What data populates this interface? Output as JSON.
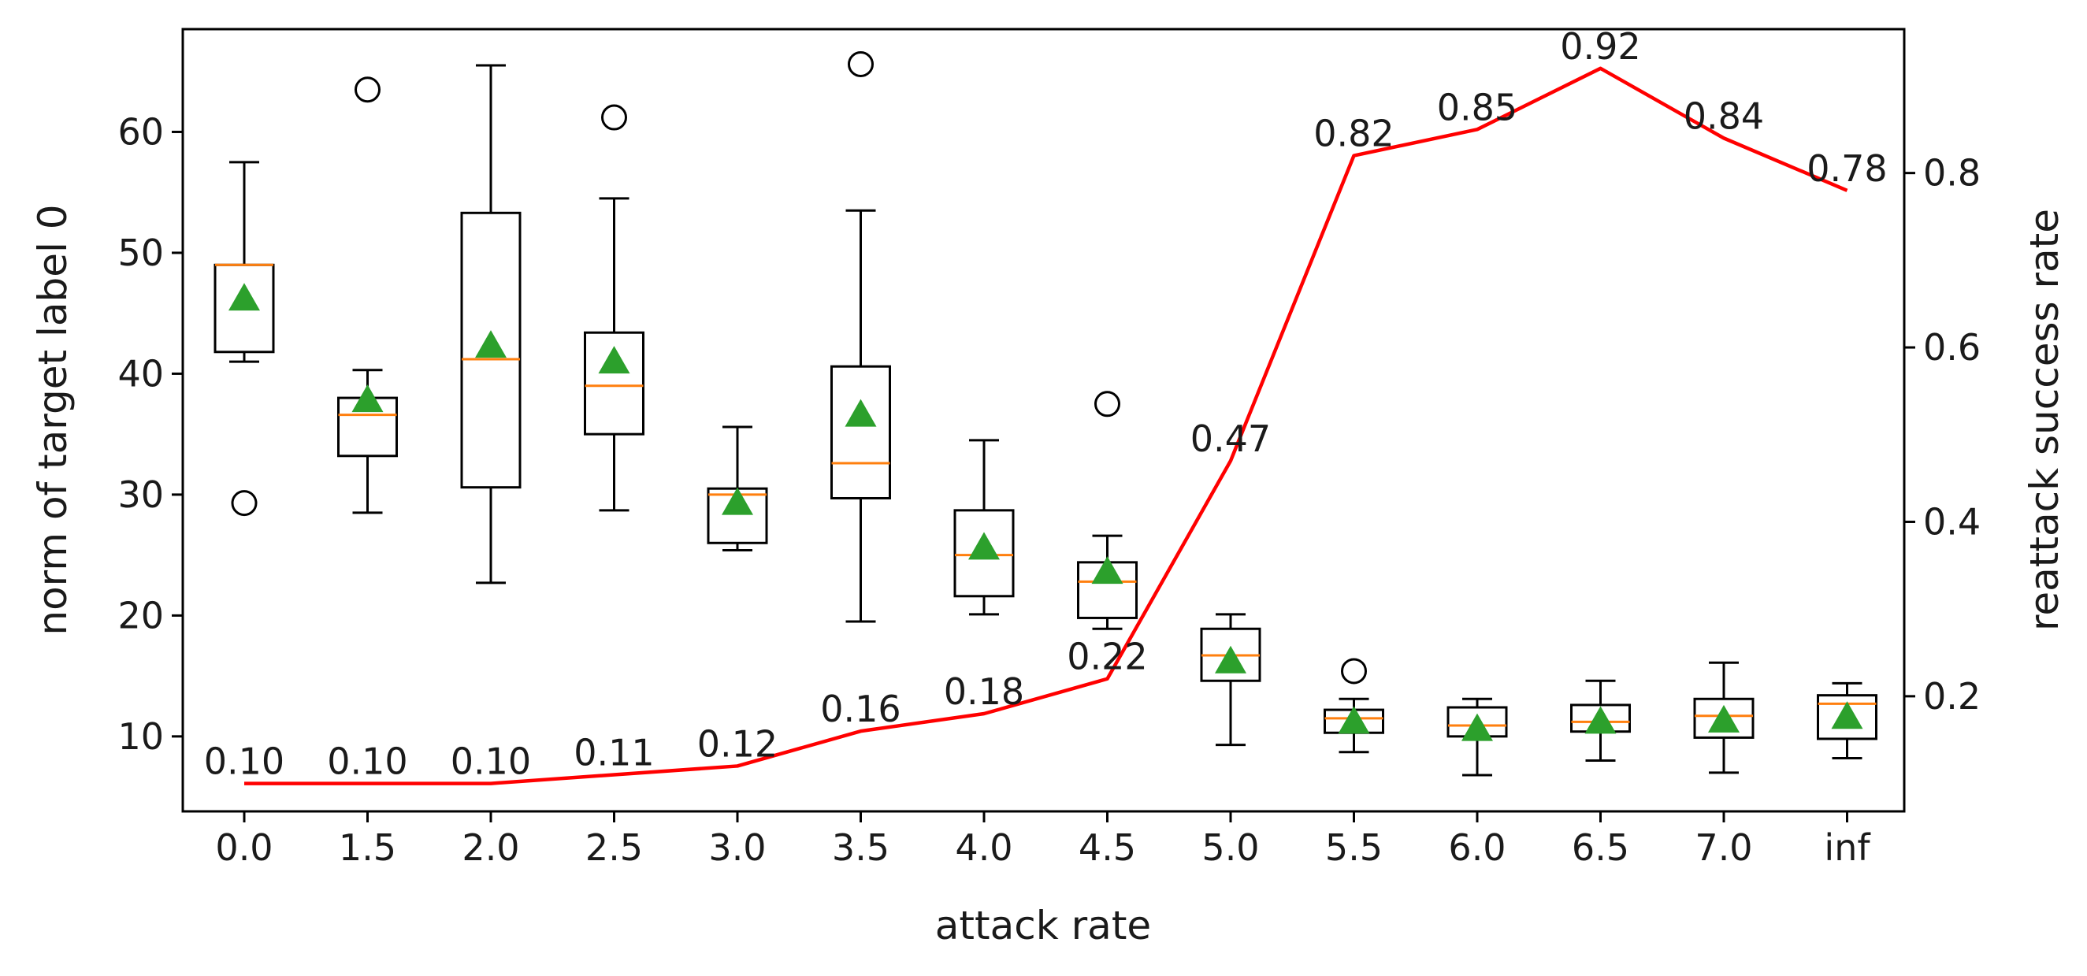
{
  "chart_data": {
    "type": "box",
    "xlabel": "attack rate",
    "ylabel_left": "norm of target label 0",
    "ylabel_right": "reattack success rate",
    "categories": [
      "0.0",
      "1.5",
      "2.0",
      "2.5",
      "3.0",
      "3.5",
      "4.0",
      "4.5",
      "5.0",
      "5.5",
      "6.0",
      "6.5",
      "7.0",
      "inf"
    ],
    "ylim_left": [
      3.8,
      68.5
    ],
    "ylim_right": [
      0.068,
      0.965
    ],
    "yticks_left": [
      10,
      20,
      30,
      40,
      50,
      60
    ],
    "yticks_right": [
      0.2,
      0.4,
      0.6,
      0.8
    ],
    "ytick_labels_right": [
      "0.2",
      "0.4",
      "0.6",
      "0.8"
    ],
    "boxes": [
      {
        "whislo": 41.0,
        "q1": 41.8,
        "med": 49.0,
        "q3": 49.0,
        "whishi": 57.5,
        "mean": 46.2,
        "fliers": [
          29.3
        ]
      },
      {
        "whislo": 28.5,
        "q1": 33.2,
        "med": 36.6,
        "q3": 38.0,
        "whishi": 40.3,
        "mean": 37.8,
        "fliers": [
          63.5
        ]
      },
      {
        "whislo": 22.7,
        "q1": 30.6,
        "med": 41.2,
        "q3": 53.3,
        "whishi": 65.5,
        "mean": 42.3,
        "fliers": []
      },
      {
        "whislo": 28.7,
        "q1": 35.0,
        "med": 39.0,
        "q3": 43.4,
        "whishi": 54.5,
        "mean": 41.0,
        "fliers": [
          61.2
        ]
      },
      {
        "whislo": 25.4,
        "q1": 26.0,
        "med": 30.0,
        "q3": 30.5,
        "whishi": 35.6,
        "mean": 29.3,
        "fliers": []
      },
      {
        "whislo": 19.5,
        "q1": 29.7,
        "med": 32.6,
        "q3": 40.6,
        "whishi": 53.5,
        "mean": 36.6,
        "fliers": [
          65.6
        ]
      },
      {
        "whislo": 20.1,
        "q1": 21.6,
        "med": 25.0,
        "q3": 28.7,
        "whishi": 34.5,
        "mean": 25.6,
        "fliers": []
      },
      {
        "whislo": 18.9,
        "q1": 19.8,
        "med": 22.8,
        "q3": 24.4,
        "whishi": 26.6,
        "mean": 23.6,
        "fliers": [
          37.5
        ]
      },
      {
        "whislo": 9.3,
        "q1": 14.6,
        "med": 16.7,
        "q3": 18.9,
        "whishi": 20.1,
        "mean": 16.2,
        "fliers": []
      },
      {
        "whislo": 8.7,
        "q1": 10.3,
        "med": 11.5,
        "q3": 12.2,
        "whishi": 13.1,
        "mean": 11.2,
        "fliers": [
          15.4
        ]
      },
      {
        "whislo": 6.8,
        "q1": 10.0,
        "med": 10.9,
        "q3": 12.4,
        "whishi": 13.1,
        "mean": 10.6,
        "fliers": []
      },
      {
        "whislo": 8.0,
        "q1": 10.4,
        "med": 11.2,
        "q3": 12.6,
        "whishi": 14.6,
        "mean": 11.2,
        "fliers": []
      },
      {
        "whislo": 7.0,
        "q1": 9.9,
        "med": 11.7,
        "q3": 13.1,
        "whishi": 16.1,
        "mean": 11.3,
        "fliers": []
      },
      {
        "whislo": 8.2,
        "q1": 9.8,
        "med": 12.7,
        "q3": 13.4,
        "whishi": 14.4,
        "mean": 11.6,
        "fliers": []
      }
    ],
    "series": [
      {
        "name": "reattack success rate",
        "axis": "right",
        "values": [
          0.1,
          0.1,
          0.1,
          0.11,
          0.12,
          0.16,
          0.18,
          0.22,
          0.47,
          0.82,
          0.85,
          0.92,
          0.84,
          0.78
        ],
        "labels": [
          "0.10",
          "0.10",
          "0.10",
          "0.11",
          "0.12",
          "0.16",
          "0.18",
          "0.22",
          "0.47",
          "0.82",
          "0.85",
          "0.92",
          "0.84",
          "0.78"
        ]
      }
    ],
    "colors": {
      "box": "#000000",
      "median": "#ff7f0e",
      "mean": "#2ca02c",
      "line": "#ff0000"
    }
  }
}
